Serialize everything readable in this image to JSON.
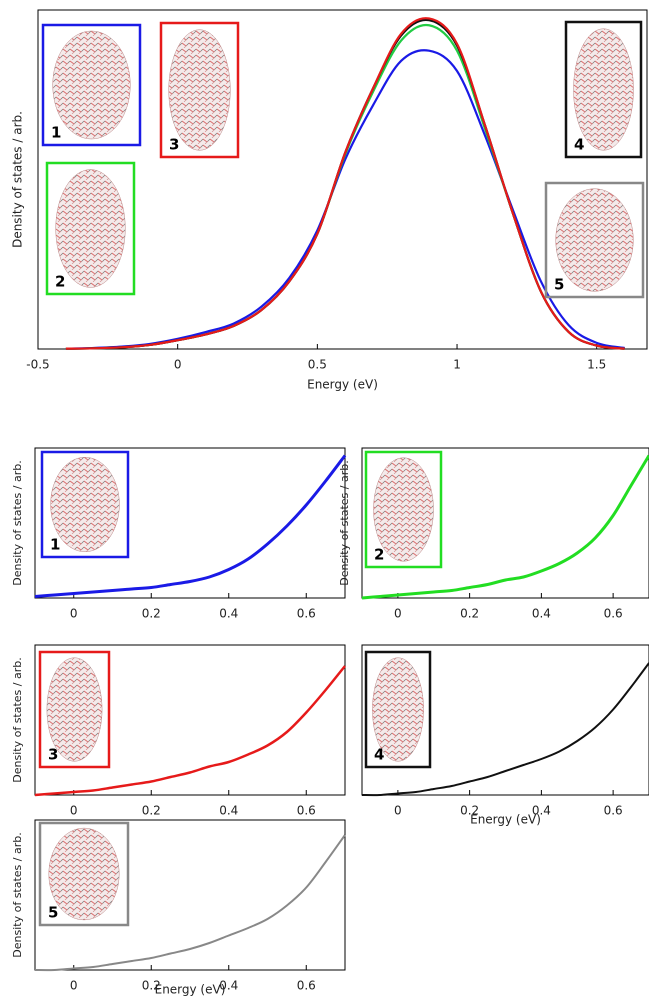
{
  "chart_data": [
    {
      "type": "line",
      "xlabel": "Energy (eV)",
      "ylabel": "Density of states / arb.",
      "x": [
        -0.4,
        -0.3,
        -0.2,
        -0.1,
        0,
        0.1,
        0.2,
        0.3,
        0.4,
        0.5,
        0.6,
        0.7,
        0.8,
        0.9,
        1.0,
        1.1,
        1.2,
        1.3,
        1.4,
        1.5,
        1.6
      ],
      "series": [
        {
          "color": "#1a1ae6",
          "values": [
            0.001,
            0.003,
            0.007,
            0.015,
            0.03,
            0.05,
            0.075,
            0.125,
            0.21,
            0.35,
            0.56,
            0.72,
            0.85,
            0.88,
            0.82,
            0.63,
            0.41,
            0.2,
            0.07,
            0.018,
            0.003
          ]
        },
        {
          "color": "#22cc44",
          "values": [
            0.001,
            0.002,
            0.005,
            0.012,
            0.026,
            0.043,
            0.068,
            0.115,
            0.2,
            0.34,
            0.575,
            0.76,
            0.91,
            0.955,
            0.88,
            0.65,
            0.4,
            0.17,
            0.05,
            0.01,
            0.001
          ]
        },
        {
          "color": "#111111",
          "values": [
            0.001,
            0.002,
            0.005,
            0.012,
            0.026,
            0.043,
            0.068,
            0.115,
            0.2,
            0.34,
            0.58,
            0.77,
            0.925,
            0.97,
            0.895,
            0.66,
            0.4,
            0.17,
            0.05,
            0.01,
            0.001
          ]
        },
        {
          "color": "#e61a1a",
          "values": [
            0.001,
            0.002,
            0.005,
            0.012,
            0.026,
            0.043,
            0.068,
            0.115,
            0.2,
            0.34,
            0.58,
            0.77,
            0.93,
            0.975,
            0.9,
            0.66,
            0.4,
            0.17,
            0.05,
            0.01,
            0.001
          ]
        }
      ],
      "xlim": [
        -0.5,
        1.68
      ],
      "xticks": [
        -0.5,
        0,
        0.5,
        1,
        1.5
      ],
      "ylim": [
        0,
        1
      ],
      "annotations": [
        {
          "text": "1",
          "color": "#1a1ae6"
        },
        {
          "text": "2",
          "color": "#22dd22"
        },
        {
          "text": "3",
          "color": "#e61a1a"
        },
        {
          "text": "4",
          "color": "#111111"
        },
        {
          "text": "5",
          "color": "#888888"
        }
      ]
    },
    {
      "type": "line",
      "ylabel": "Density of states / arb.",
      "color": "#1a1ae6",
      "x": [
        -0.1,
        -0.05,
        0,
        0.05,
        0.1,
        0.15,
        0.2,
        0.25,
        0.3,
        0.35,
        0.4,
        0.45,
        0.5,
        0.55,
        0.6,
        0.65,
        0.7
      ],
      "values": [
        0.01,
        0.02,
        0.03,
        0.04,
        0.05,
        0.06,
        0.07,
        0.09,
        0.11,
        0.14,
        0.19,
        0.26,
        0.36,
        0.48,
        0.62,
        0.78,
        0.95
      ],
      "xlim": [
        -0.1,
        0.7
      ],
      "xticks": [
        0,
        0.2,
        0.4,
        0.6
      ],
      "ylim": [
        0,
        1
      ],
      "annotations": [
        {
          "text": "1",
          "color": "#1a1ae6"
        }
      ]
    },
    {
      "type": "line",
      "ylabel": "Density of states / arb.",
      "color": "#22dd22",
      "x": [
        -0.1,
        -0.05,
        0,
        0.05,
        0.1,
        0.15,
        0.2,
        0.25,
        0.3,
        0.35,
        0.4,
        0.45,
        0.5,
        0.55,
        0.6,
        0.65,
        0.7
      ],
      "values": [
        0.0,
        0.01,
        0.02,
        0.03,
        0.04,
        0.05,
        0.07,
        0.09,
        0.12,
        0.14,
        0.18,
        0.23,
        0.3,
        0.4,
        0.55,
        0.75,
        0.95
      ],
      "xlim": [
        -0.1,
        0.7
      ],
      "xticks": [
        0,
        0.2,
        0.4,
        0.6
      ],
      "ylim": [
        0,
        1
      ],
      "annotations": [
        {
          "text": "2",
          "color": "#22dd22"
        }
      ]
    },
    {
      "type": "line",
      "ylabel": "Density of states / arb.",
      "color": "#e61a1a",
      "x": [
        -0.1,
        -0.05,
        0,
        0.05,
        0.1,
        0.15,
        0.2,
        0.25,
        0.3,
        0.35,
        0.4,
        0.45,
        0.5,
        0.55,
        0.6,
        0.65,
        0.7
      ],
      "values": [
        0.0,
        0.01,
        0.02,
        0.03,
        0.05,
        0.07,
        0.09,
        0.12,
        0.15,
        0.19,
        0.22,
        0.27,
        0.33,
        0.42,
        0.55,
        0.7,
        0.86
      ],
      "xlim": [
        -0.1,
        0.7
      ],
      "xticks": [
        0,
        0.2,
        0.4,
        0.6
      ],
      "ylim": [
        0,
        1
      ],
      "annotations": [
        {
          "text": "3",
          "color": "#e61a1a"
        }
      ]
    },
    {
      "type": "line",
      "xlabel": "Energy (eV)",
      "color": "#111111",
      "x": [
        -0.1,
        -0.05,
        0,
        0.05,
        0.1,
        0.15,
        0.2,
        0.25,
        0.3,
        0.35,
        0.4,
        0.45,
        0.5,
        0.55,
        0.6,
        0.65,
        0.7
      ],
      "values": [
        0,
        0,
        0.01,
        0.02,
        0.04,
        0.06,
        0.09,
        0.12,
        0.16,
        0.2,
        0.24,
        0.29,
        0.36,
        0.45,
        0.57,
        0.72,
        0.88
      ],
      "xlim": [
        -0.1,
        0.7
      ],
      "xticks": [
        0,
        0.2,
        0.4,
        0.6
      ],
      "ylim": [
        0,
        1
      ],
      "annotations": [
        {
          "text": "4",
          "color": "#111111"
        }
      ]
    },
    {
      "type": "line",
      "xlabel": "Energy (eV)",
      "ylabel": "Density of states / arb.",
      "color": "#888888",
      "x": [
        -0.1,
        -0.05,
        0,
        0.05,
        0.1,
        0.15,
        0.2,
        0.25,
        0.3,
        0.35,
        0.4,
        0.45,
        0.5,
        0.55,
        0.6,
        0.65,
        0.7
      ],
      "values": [
        0,
        0,
        0.01,
        0.02,
        0.04,
        0.06,
        0.08,
        0.11,
        0.14,
        0.18,
        0.23,
        0.28,
        0.34,
        0.43,
        0.55,
        0.72,
        0.9
      ],
      "xlim": [
        -0.1,
        0.7
      ],
      "xticks": [
        0,
        0.2,
        0.4,
        0.6
      ],
      "ylim": [
        0,
        1
      ],
      "annotations": [
        {
          "text": "5",
          "color": "#888888"
        }
      ]
    }
  ]
}
